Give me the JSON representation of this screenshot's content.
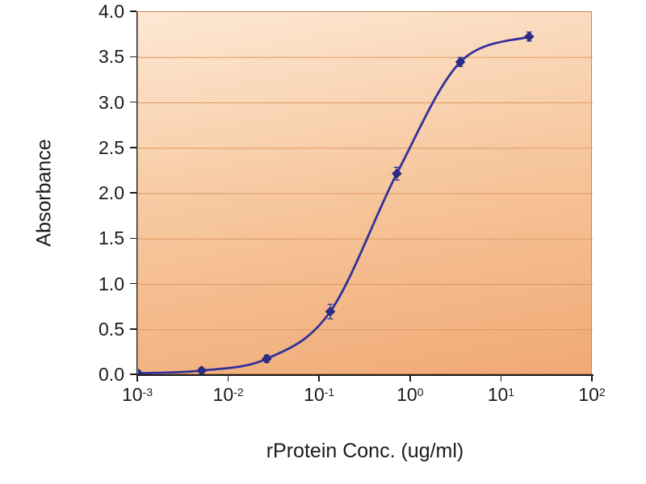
{
  "chart_data": {
    "type": "scatter",
    "title": "",
    "xlabel": "rProtein Conc. (ug/ml)",
    "ylabel": "Absorbance",
    "x_scale": "log",
    "x": [
      0.001,
      0.005,
      0.026,
      0.13,
      0.7,
      3.5,
      20
    ],
    "y": [
      0.02,
      0.05,
      0.18,
      0.7,
      2.22,
      3.45,
      3.73
    ],
    "y_err": [
      0.03,
      0.03,
      0.04,
      0.08,
      0.07,
      0.05,
      0.05
    ],
    "xlim_exponents": [
      -3,
      2
    ],
    "ylim": [
      0,
      4
    ],
    "x_tick_base": "10",
    "x_tick_exponents": [
      "-3",
      "-2",
      "-1",
      "0",
      "1",
      "2"
    ],
    "y_tick_labels": [
      "0.0",
      "0.5",
      "1.0",
      "1.5",
      "2.0",
      "2.5",
      "3.0",
      "3.5",
      "4.0"
    ],
    "grid": "horizontal",
    "legend": "none",
    "marker": "diamond",
    "line_color": "#31319b",
    "marker_color": "#2c2c8e",
    "marker_edge_color": "#1f1f6e",
    "grid_color": "#dd9a63",
    "plot_border_color": "#cc8550",
    "plot_bg_top": "#fde8d4",
    "plot_bg_mid": "#f6c397",
    "plot_bg_bottom": "#f0a975",
    "axis_color": "#1c1c1c",
    "text_color": "#1b1b1b"
  }
}
